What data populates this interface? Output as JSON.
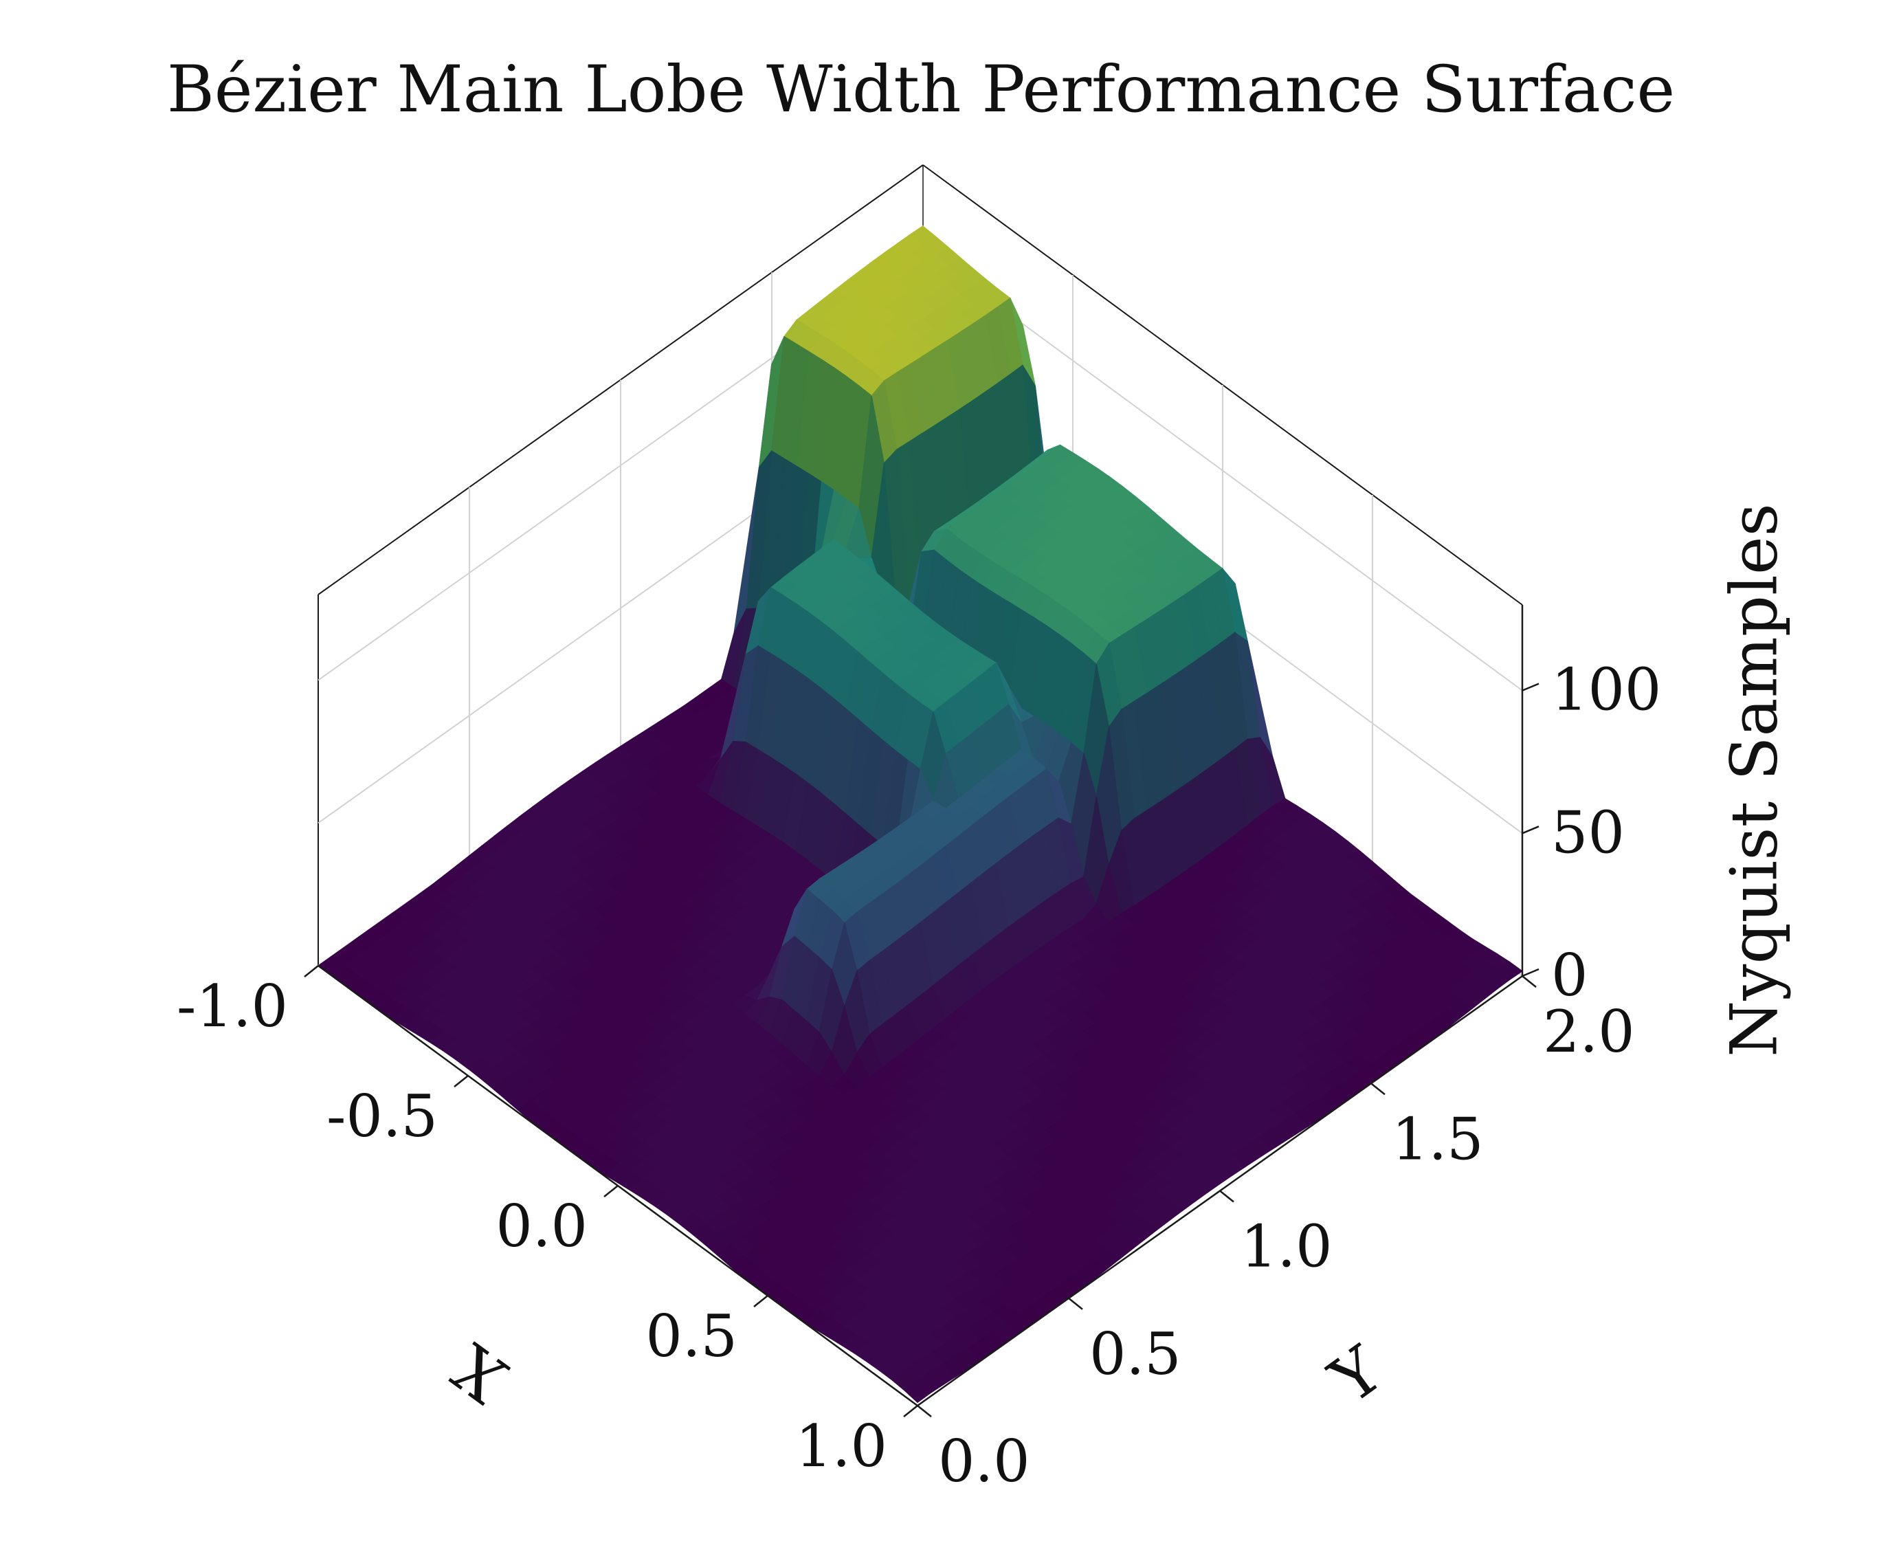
{
  "chart_data": {
    "type": "surface3d",
    "title": "Bézier Main Lobe Width Performance Surface",
    "xlabel": "X",
    "ylabel": "Y",
    "zlabel": "Nyquist Samples",
    "xlim": [
      -1.0,
      1.0
    ],
    "ylim": [
      0.0,
      2.0
    ],
    "zlim": [
      0,
      130
    ],
    "x_ticks": [
      -1.0,
      -0.5,
      0.0,
      0.5,
      1.0
    ],
    "x_tick_labels": [
      "-1.0",
      "-0.5",
      "0.0",
      "0.5",
      "1.0"
    ],
    "y_ticks": [
      0.0,
      0.5,
      1.0,
      1.5,
      2.0
    ],
    "y_tick_labels": [
      "0.0",
      "0.5",
      "1.0",
      "1.5",
      "2.0"
    ],
    "z_ticks": [
      0,
      50,
      100
    ],
    "z_tick_labels": [
      "0",
      "50",
      "100"
    ],
    "colormap": [
      "#440154",
      "#3b528b",
      "#21918c",
      "#5ec962",
      "#fde725"
    ],
    "grid": true,
    "surface_features": [
      {
        "feature": "back-corner plateau",
        "x_range": [
          -1.0,
          -0.55
        ],
        "y_range": [
          1.4,
          2.0
        ],
        "z": 120
      },
      {
        "feature": "raised shelf",
        "x_range": [
          -0.55,
          0.15
        ],
        "y_range": [
          1.45,
          2.0
        ],
        "z": 80
      },
      {
        "feature": "rear wall",
        "x_range": [
          -0.75,
          -0.05
        ],
        "y_range": [
          1.1,
          1.45
        ],
        "z": 70
      },
      {
        "feature": "side wall",
        "x_range": [
          -0.15,
          0.1
        ],
        "y_range": [
          0.65,
          1.45
        ],
        "z": 45
      },
      {
        "feature": "inner pillar",
        "x_range": [
          -0.45,
          -0.25
        ],
        "y_range": [
          1.1,
          1.3
        ],
        "z": 40
      },
      {
        "feature": "background floor",
        "x_range": [
          -1.0,
          1.0
        ],
        "y_range": [
          0.0,
          2.0
        ],
        "z": 2
      }
    ]
  }
}
